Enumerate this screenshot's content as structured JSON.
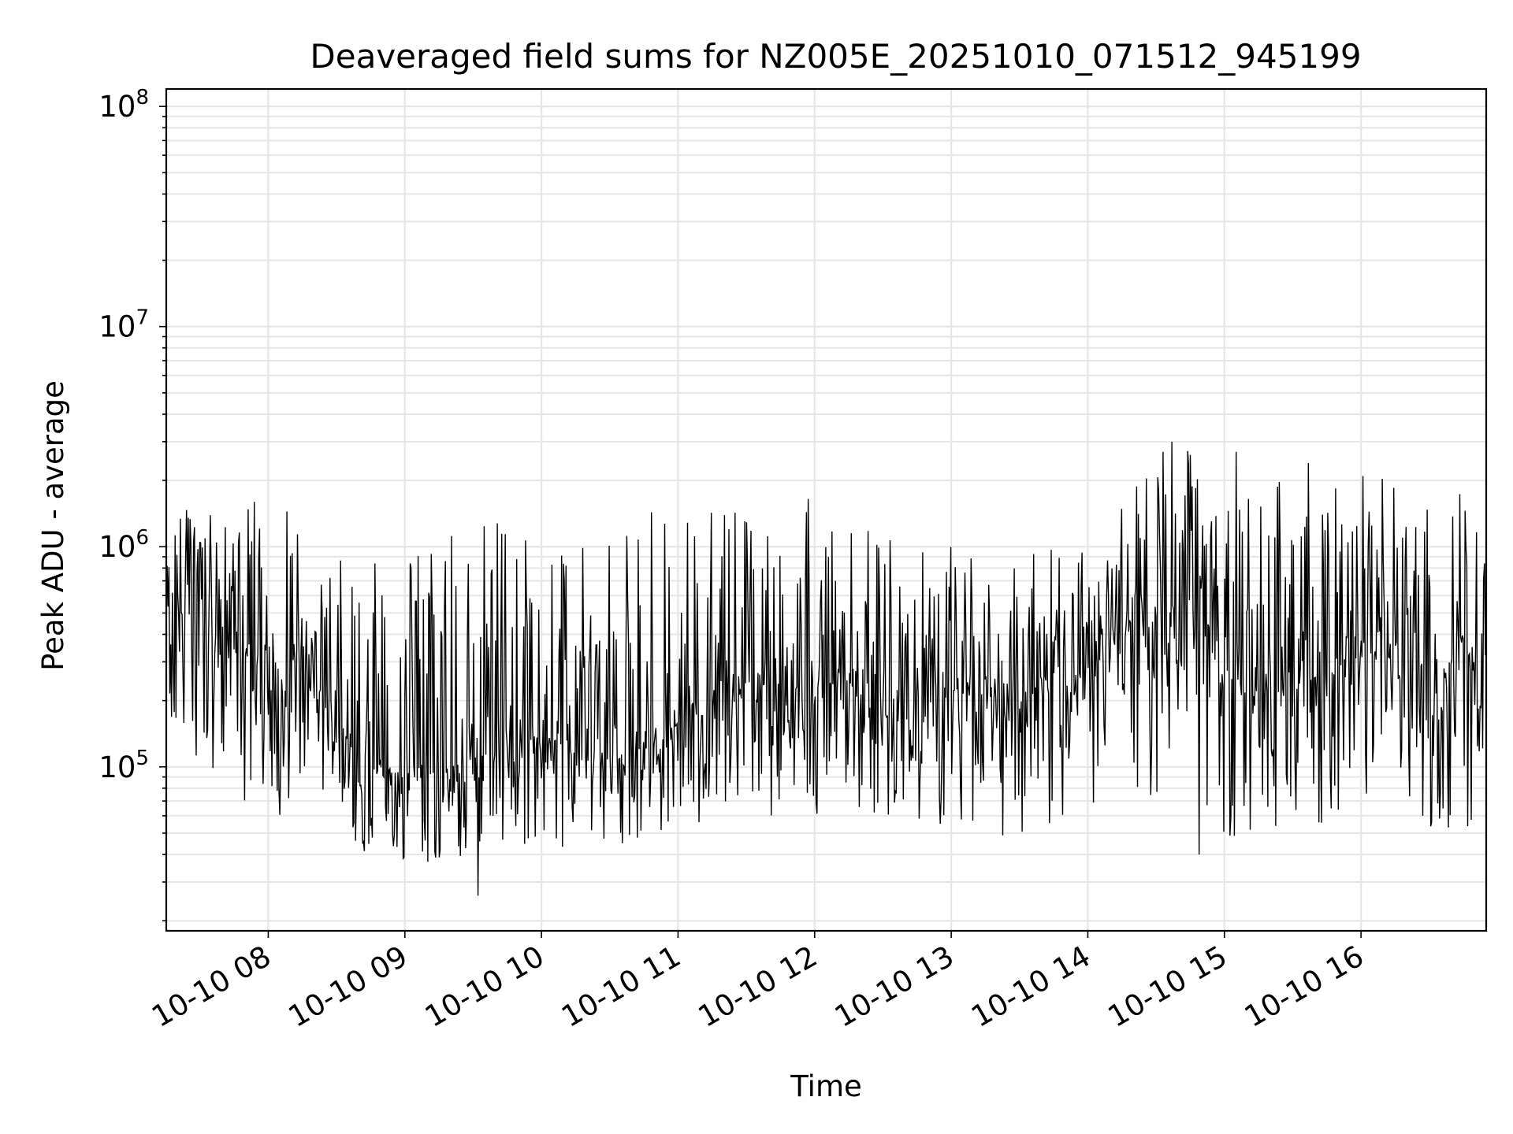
{
  "chart_data": {
    "type": "line",
    "title": "Deaveraged field sums for NZ005E_20251010_071512_945199",
    "xlabel": "Time",
    "ylabel": "Peak ADU - average",
    "yscale": "log",
    "ylim": [
      18000,
      120000000
    ],
    "xlim": [
      "2025-10-10T07:15:12",
      "2025-10-10T16:55:00"
    ],
    "grid": true,
    "line_color": "#000000",
    "grid_color": "#e6e6e6",
    "x_ticks": [
      {
        "value": "2025-10-10T08:00",
        "label": "10-10 08"
      },
      {
        "value": "2025-10-10T09:00",
        "label": "10-10 09"
      },
      {
        "value": "2025-10-10T10:00",
        "label": "10-10 10"
      },
      {
        "value": "2025-10-10T11:00",
        "label": "10-10 11"
      },
      {
        "value": "2025-10-10T12:00",
        "label": "10-10 12"
      },
      {
        "value": "2025-10-10T13:00",
        "label": "10-10 13"
      },
      {
        "value": "2025-10-10T14:00",
        "label": "10-10 14"
      },
      {
        "value": "2025-10-10T15:00",
        "label": "10-10 15"
      },
      {
        "value": "2025-10-10T16:00",
        "label": "10-10 16"
      }
    ],
    "y_ticks": [
      {
        "value": 100000,
        "base": "10",
        "exp": "5"
      },
      {
        "value": 1000000,
        "base": "10",
        "exp": "6"
      },
      {
        "value": 10000000,
        "base": "10",
        "exp": "7"
      },
      {
        "value": 100000000,
        "base": "10",
        "exp": "8"
      }
    ],
    "series": [
      {
        "x": [
          "2025-10-10T07:15",
          "2025-10-10T07:30",
          "2025-10-10T07:45",
          "2025-10-10T08:00",
          "2025-10-10T08:15",
          "2025-10-10T08:30",
          "2025-10-10T08:45",
          "2025-10-10T09:00",
          "2025-10-10T09:15",
          "2025-10-10T09:30",
          "2025-10-10T09:45",
          "2025-10-10T10:00",
          "2025-10-10T10:15",
          "2025-10-10T10:30",
          "2025-10-10T10:45",
          "2025-10-10T11:00",
          "2025-10-10T11:15",
          "2025-10-10T11:30",
          "2025-10-10T11:45",
          "2025-10-10T12:00",
          "2025-10-10T12:15",
          "2025-10-10T12:30",
          "2025-10-10T12:45",
          "2025-10-10T13:00",
          "2025-10-10T13:15",
          "2025-10-10T13:30",
          "2025-10-10T13:45",
          "2025-10-10T14:00",
          "2025-10-10T14:15",
          "2025-10-10T14:30",
          "2025-10-10T14:45",
          "2025-10-10T15:00",
          "2025-10-10T15:15",
          "2025-10-10T15:30",
          "2025-10-10T15:45",
          "2025-10-10T16:00",
          "2025-10-10T16:15",
          "2025-10-10T16:30",
          "2025-10-10T16:45",
          "2025-10-10T16:55"
        ],
        "center": [
          600000,
          380000,
          320000,
          330000,
          290000,
          150000,
          110000,
          90000,
          95000,
          110000,
          130000,
          140000,
          120000,
          110000,
          130000,
          170000,
          210000,
          240000,
          230000,
          230000,
          250000,
          220000,
          200000,
          240000,
          210000,
          200000,
          240000,
          280000,
          380000,
          480000,
          560000,
          260000,
          220000,
          230000,
          270000,
          320000,
          330000,
          220000,
          330000,
          380000
        ],
        "upper": [
          1600000,
          1500000,
          1400000,
          1650000,
          1550000,
          900000,
          900000,
          900000,
          1200000,
          1300000,
          1300000,
          1300000,
          1300000,
          1350000,
          1400000,
          1600000,
          1500000,
          1400000,
          1300000,
          1650000,
          1300000,
          1300000,
          1100000,
          1000000,
          1000000,
          900000,
          1000000,
          1100000,
          1500000,
          2600000,
          3000000,
          1700000,
          1800000,
          2600000,
          2000000,
          2300000,
          2100000,
          1500000,
          1800000,
          1200000
        ],
        "lower": [
          170000,
          90000,
          60000,
          60000,
          55000,
          45000,
          38000,
          35000,
          38000,
          40000,
          42000,
          45000,
          40000,
          42000,
          45000,
          48000,
          55000,
          60000,
          58000,
          60000,
          62000,
          58000,
          52000,
          55000,
          45000,
          48000,
          52000,
          60000,
          65000,
          70000,
          50000,
          42000,
          50000,
          58000,
          55000,
          60000,
          62000,
          50000,
          48000,
          65000
        ],
        "peaks": [
          {
            "t": "2025-10-10T07:54",
            "v": 1600000
          },
          {
            "t": "2025-10-10T09:32",
            "v": 26000
          },
          {
            "t": "2025-10-10T11:57",
            "v": 1650000
          },
          {
            "t": "2025-10-10T14:33",
            "v": 2700000
          },
          {
            "t": "2025-10-10T14:37",
            "v": 3000000
          },
          {
            "t": "2025-10-10T14:49",
            "v": 40000
          },
          {
            "t": "2025-10-10T15:05",
            "v": 2700000
          },
          {
            "t": "2025-10-10T15:37",
            "v": 2400000
          }
        ]
      }
    ]
  }
}
